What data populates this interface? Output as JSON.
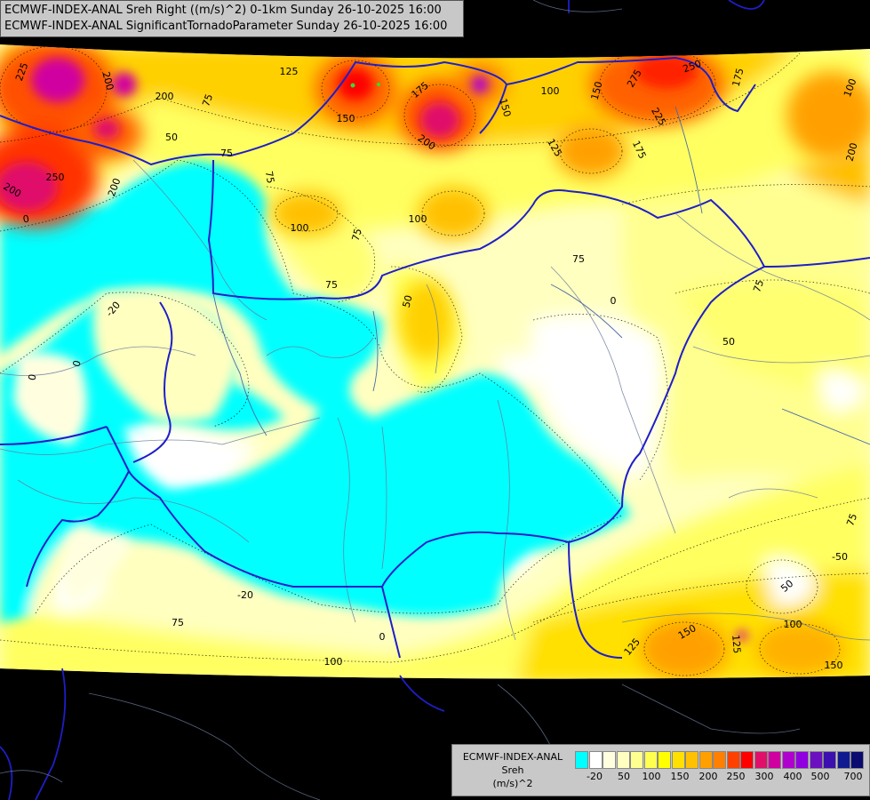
{
  "header": {
    "line1": "ECMWF-INDEX-ANAL Sreh Right ((m/s)^2) 0-1km Sunday 26-10-2025 16:00",
    "line2": "ECMWF-INDEX-ANAL SignificantTornadoParameter Sunday 26-10-2025 16:00"
  },
  "legend": {
    "line1": "ECMWF-INDEX-ANAL",
    "line2": "Sreh",
    "line3": "(m/s)^2",
    "colors": [
      "#00ffff",
      "#ffffff",
      "#ffffe0",
      "#ffffc0",
      "#ffff90",
      "#ffff50",
      "#ffff00",
      "#ffe000",
      "#ffc000",
      "#ffa000",
      "#ff8000",
      "#ff4000",
      "#ff0000",
      "#e0106a",
      "#d000a0",
      "#b000d0",
      "#9000e0",
      "#6a10c0",
      "#3c10b0",
      "#101a90",
      "#0a0a70"
    ],
    "ticks": [
      "-20",
      "50",
      "100",
      "150",
      "200",
      "250",
      "300",
      "400",
      "500",
      "700"
    ]
  },
  "contour_labels": [
    "225",
    "200",
    "200",
    "75",
    "125",
    "150",
    "200",
    "175",
    "100",
    "150",
    "250",
    "275",
    "225",
    "175",
    "125",
    "175",
    "150",
    "200",
    "50",
    "75",
    "250",
    "200",
    "200",
    "100",
    "100",
    "75",
    "75",
    "75",
    "50",
    "0",
    "-20",
    "0",
    "0",
    "50",
    "75",
    "0",
    "75",
    "50",
    "75",
    "-50",
    "100",
    "125",
    "150",
    "125",
    "100",
    "150",
    "-20",
    "0",
    "75",
    "100"
  ]
}
